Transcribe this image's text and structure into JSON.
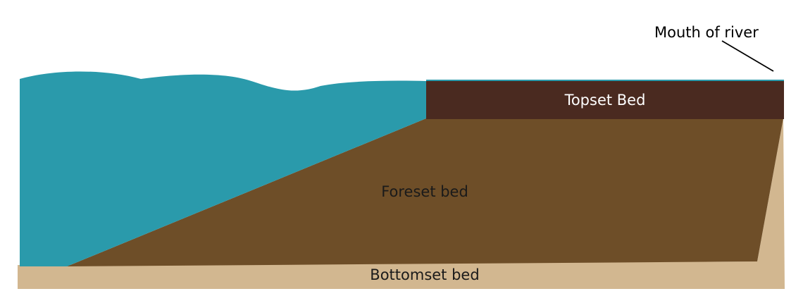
{
  "labels": {
    "mouth_of_river": "Mouth of river",
    "topset_bed": "Topset Bed",
    "foreset_bed": "Foreset bed",
    "bottomset_bed": "Bottomset bed"
  },
  "colors": {
    "water": "#2a9aab",
    "topset": "#4a2a20",
    "foreset": "#6e4e28",
    "bottomset": "#d2b790",
    "topset_text": "#ffffff",
    "foreset_text": "#1a1a1a",
    "bottomset_text": "#1a1a1a",
    "annotation_text": "#000000"
  }
}
